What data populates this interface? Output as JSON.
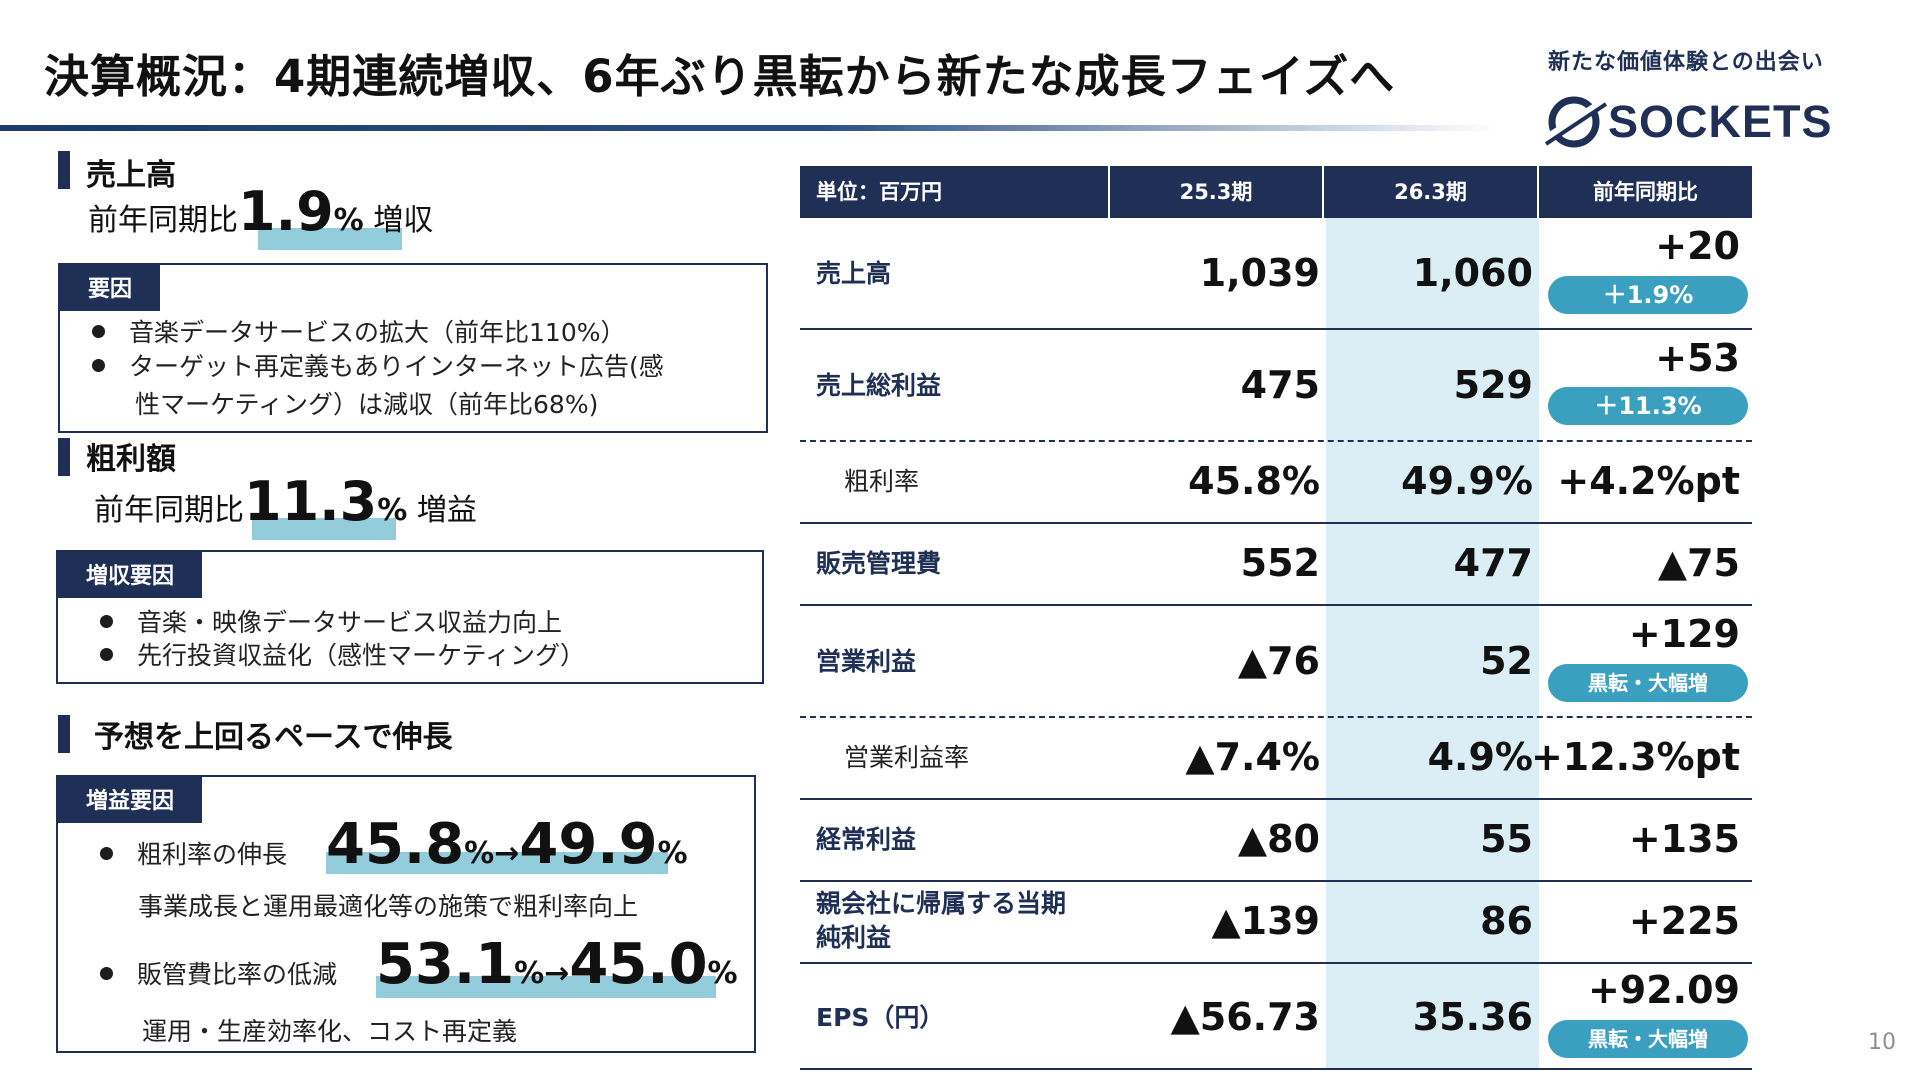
{
  "header": {
    "title": "決算概況：4期連続増収、6年ぶり黒転から新たな成長フェイズへ",
    "tagline": "新たな価値体験との出会い",
    "logo_text": "SOCKETS",
    "page_number": "10"
  },
  "sales": {
    "heading": "売上高",
    "yoy_prefix": "前年同期比",
    "yoy_value": "1.9",
    "yoy_unit": "%",
    "yoy_suffix": "増収",
    "box_tag": "要因",
    "bullets": [
      "音楽データサービスの拡大（前年比110%）",
      "ターゲット再定義もありインターネット広告(感",
      "性マーケティング）は減収（前年比68%)"
    ]
  },
  "gross": {
    "heading": "粗利額",
    "yoy_prefix": "前年同期比",
    "yoy_value": "11.3",
    "yoy_unit": "%",
    "yoy_suffix": "増益",
    "box_tag": "増収要因",
    "bullets": [
      "音楽・映像データサービス収益力向上",
      "先行投資収益化（感性マーケティング）"
    ]
  },
  "outlook": {
    "heading": "予想を上回るペースで伸長",
    "box_tag": "増益要因",
    "item1_label": "粗利率の伸長",
    "item1_from": "45.8",
    "item1_from_unit": "%",
    "item1_arrow": "→",
    "item1_to": "49.9",
    "item1_to_unit": "%",
    "item1_note": "事業成長と運用最適化等の施策で粗利率向上",
    "item2_label": "販管費比率の低減",
    "item2_from": "53.1",
    "item2_from_unit": "%",
    "item2_arrow": "→",
    "item2_to": "45.0",
    "item2_to_unit": "%",
    "item2_note": "運用・生産効率化、コスト再定義"
  },
  "table": {
    "headers": [
      "単位：百万円",
      "25.3期",
      "26.3期",
      "前年同期比"
    ],
    "rows": [
      {
        "label": "売上高",
        "v1": "1,039",
        "v2": "1,060",
        "diff": "+20",
        "pill": "＋1.9%"
      },
      {
        "label": "売上総利益",
        "v1": "475",
        "v2": "529",
        "diff": "+53",
        "pill": "＋11.3%"
      },
      {
        "label": "粗利率",
        "v1": "45.8%",
        "v2": "49.9%",
        "diff": "+4.2%pt"
      },
      {
        "label": "販売管理費",
        "v1": "552",
        "v2": "477",
        "diff": "▲75"
      },
      {
        "label": "営業利益",
        "v1": "▲76",
        "v2": "52",
        "diff": "+129",
        "pill": "黒転・大幅増"
      },
      {
        "label": "営業利益率",
        "v1": "▲7.4%",
        "v2": "4.9%",
        "diff": "+12.3%pt"
      },
      {
        "label": "経常利益",
        "v1": "▲80",
        "v2": "55",
        "diff": "+135"
      },
      {
        "label": "親会社に帰属する当期",
        "label2": "純利益",
        "v1": "▲139",
        "v2": "86",
        "diff": "+225"
      },
      {
        "label": "EPS（円）",
        "v1": "▲56.73",
        "v2": "35.36",
        "diff": "+92.09",
        "pill": "黒転・大幅増"
      }
    ]
  },
  "colors": {
    "navy": "#1f2f55",
    "highlight": "#93cddc",
    "pill": "#3ba0c0",
    "column_shade": "#dbeef5"
  }
}
